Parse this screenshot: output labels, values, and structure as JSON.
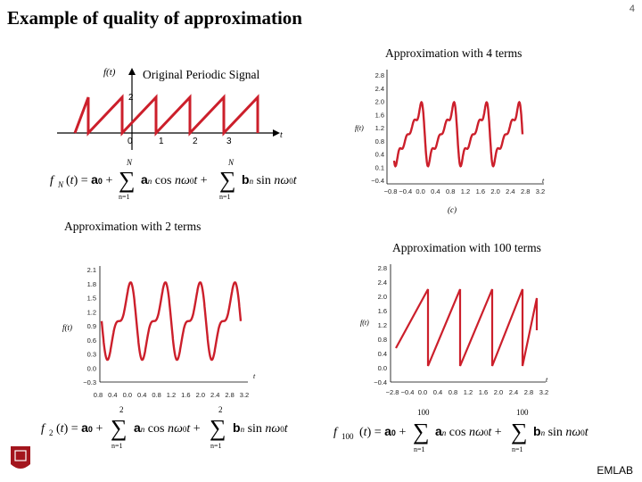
{
  "slide": {
    "title": "Example of quality of approximation",
    "page_number": "4",
    "footer_label": "EMLAB",
    "logo": {
      "korean_name": "서강대학교",
      "english_name": "SOGANG UNIVERSITY"
    }
  },
  "captions": {
    "original": "Original Periodic Signal",
    "four_terms": "Approximation with 4 terms",
    "two_terms": "Approximation with 2 terms",
    "hundred_terms": "Approximation with 100 terms"
  },
  "original_plot": {
    "y_axis_label": "f(t)",
    "x_axis_label": "t",
    "peak_label": "2",
    "x_ticks": [
      "0",
      "1",
      "2",
      "3"
    ]
  },
  "plot_4_terms": {
    "y_axis_label": "f(t)",
    "x_axis_label": "t",
    "y_ticks": [
      "2.8",
      "2.4",
      "2.0",
      "1.6",
      "1.2",
      "0.8",
      "0.4",
      "0.1",
      "−0.4"
    ],
    "x_ticks": [
      "−0.8",
      "−0.4",
      "0.0",
      "0.4",
      "0.8",
      "1.2",
      "1.6",
      "2.0",
      "2.4",
      "2.8",
      "3.2"
    ],
    "subfigure_label": "(c)"
  },
  "plot_2_terms": {
    "y_axis_label": "f(t)",
    "x_axis_label": "t",
    "y_ticks": [
      "2.1",
      "1.8",
      "1.5",
      "1.2",
      "0.9",
      "0.6",
      "0.3",
      "0.0",
      "−0.3"
    ],
    "x_ticks": [
      "0.8",
      "0.4",
      "0.0",
      "0.4",
      "0.8",
      "1.2",
      "1.6",
      "2.0",
      "2.4",
      "2.8",
      "3.2"
    ]
  },
  "plot_100_terms": {
    "y_axis_label": "f(t)",
    "x_axis_label": "t",
    "y_ticks": [
      "2.8",
      "2.4",
      "2.0",
      "1.6",
      "1.2",
      "0.8",
      "0.4",
      "0.0",
      "−0.4"
    ],
    "x_ticks": [
      "−2.8",
      "−0.4",
      "0.0",
      "0.4",
      "0.8",
      "1.2",
      "1.6",
      "2.0",
      "2.4",
      "2.8",
      "3.2"
    ]
  },
  "formulas": {
    "general": {
      "lhs": "f",
      "lhs_sub": "N",
      "n_upper": "N",
      "n_lower": "n=1"
    },
    "two": {
      "lhs": "f",
      "lhs_sub": "2",
      "n_upper": "2",
      "n_lower": "n=1"
    },
    "hundred": {
      "lhs": "f",
      "lhs_sub": "100",
      "n_upper": "100",
      "n_lower": "n=1"
    }
  },
  "colors": {
    "signal": "#cc1f2b",
    "axis": "#000000"
  }
}
